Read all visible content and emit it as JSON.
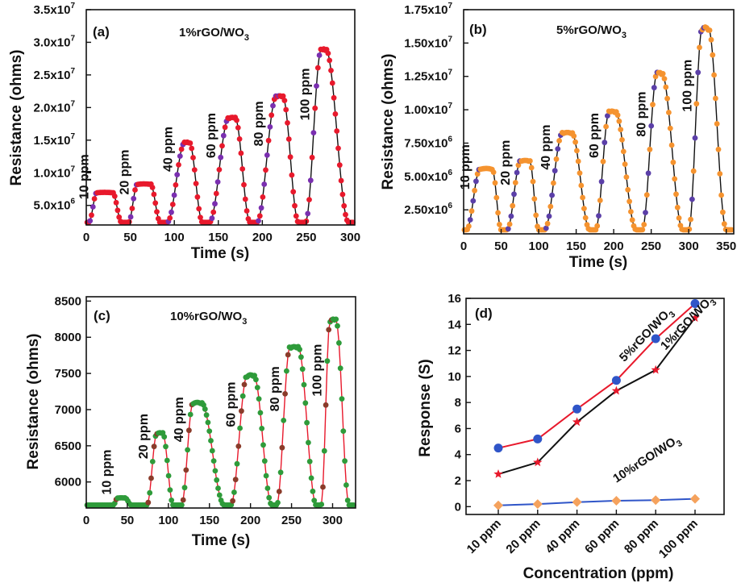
{
  "chart_data": [
    {
      "type": "line",
      "panel": "(a)",
      "material": {
        "base": "1%rGO/WO",
        "sub": "3"
      },
      "xlabel": "Time (s)",
      "ylabel": "Resistance (ohms)",
      "xlim": [
        0,
        305
      ],
      "ylim": [
        2000000,
        35000000
      ],
      "xticks": [
        {
          "value": 0,
          "label": "0"
        },
        {
          "value": 50,
          "label": "50"
        },
        {
          "value": 100,
          "label": "100"
        },
        {
          "value": 150,
          "label": "150"
        },
        {
          "value": 200,
          "label": "200"
        },
        {
          "value": 250,
          "label": "250"
        },
        {
          "value": 300,
          "label": "300"
        }
      ],
      "yticks": [
        {
          "value": 5000000,
          "label": "5.0x10",
          "exp": "6"
        },
        {
          "value": 10000000,
          "label": "1.0x10",
          "exp": "7"
        },
        {
          "value": 15000000,
          "label": "1.5x10",
          "exp": "7"
        },
        {
          "value": 20000000,
          "label": "2.0x10",
          "exp": "7"
        },
        {
          "value": 25000000,
          "label": "2.5x10",
          "exp": "7"
        },
        {
          "value": 30000000,
          "label": "3.0x10",
          "exp": "7"
        },
        {
          "value": 35000000,
          "label": "3.5x10",
          "exp": "7"
        }
      ],
      "colors": {
        "line": "#111111",
        "marker": "#e8192c",
        "marker_alt": "#7a2fb0"
      },
      "baseline": 2400000,
      "pulses": [
        {
          "label": "10 ppm",
          "rise_start": 3,
          "peak_start": 12,
          "peak_end": 30,
          "recover_end": 40,
          "peak": 7000000
        },
        {
          "label": "20 ppm",
          "rise_start": 48,
          "peak_start": 58,
          "peak_end": 73,
          "recover_end": 84,
          "peak": 8300000
        },
        {
          "label": "40 ppm",
          "rise_start": 92,
          "peak_start": 112,
          "peak_end": 117,
          "recover_end": 132,
          "peak": 14700000
        },
        {
          "label": "60 ppm",
          "rise_start": 140,
          "peak_start": 162,
          "peak_end": 169,
          "recover_end": 186,
          "peak": 18500000
        },
        {
          "label": "80 ppm",
          "rise_start": 194,
          "peak_start": 216,
          "peak_end": 223,
          "recover_end": 241,
          "peak": 21800000
        },
        {
          "label": "100 ppm",
          "rise_start": 249,
          "peak_start": 267,
          "peak_end": 272,
          "recover_end": 298,
          "peak": 29000000
        }
      ]
    },
    {
      "type": "line",
      "panel": "(b)",
      "material": {
        "base": "5%rGO/WO",
        "sub": "3"
      },
      "xlabel": "Time (s)",
      "ylabel": "Resistance (ohms)",
      "xlim": [
        0,
        360
      ],
      "ylim": [
        700000,
        17500000
      ],
      "xticks": [
        {
          "value": 0,
          "label": "0"
        },
        {
          "value": 50,
          "label": "50"
        },
        {
          "value": 100,
          "label": "100"
        },
        {
          "value": 150,
          "label": "150"
        },
        {
          "value": 200,
          "label": "200"
        },
        {
          "value": 250,
          "label": "250"
        },
        {
          "value": 300,
          "label": "300"
        },
        {
          "value": 350,
          "label": "350"
        }
      ],
      "yticks": [
        {
          "value": 2500000,
          "label": "2.50x10",
          "exp": "6"
        },
        {
          "value": 5000000,
          "label": "5.00x10",
          "exp": "6"
        },
        {
          "value": 7500000,
          "label": "7.50x10",
          "exp": "6"
        },
        {
          "value": 10000000,
          "label": "1.00x10",
          "exp": "7"
        },
        {
          "value": 12500000,
          "label": "1.25x10",
          "exp": "7"
        },
        {
          "value": 15000000,
          "label": "1.50x10",
          "exp": "7"
        },
        {
          "value": 17500000,
          "label": "1.75x10",
          "exp": "7"
        }
      ],
      "colors": {
        "line": "#111111",
        "marker": "#f5932f",
        "marker_alt": "#5b3fa8"
      },
      "baseline": 1000000,
      "pulses": [
        {
          "label": "10 ppm",
          "rise_start": 4,
          "peak_start": 22,
          "peak_end": 38,
          "recover_end": 50,
          "peak": 5600000
        },
        {
          "label": "20 ppm",
          "rise_start": 58,
          "peak_start": 76,
          "peak_end": 88,
          "recover_end": 100,
          "peak": 6200000
        },
        {
          "label": "40 ppm",
          "rise_start": 108,
          "peak_start": 132,
          "peak_end": 144,
          "recover_end": 168,
          "peak": 8300000
        },
        {
          "label": "60 ppm",
          "rise_start": 176,
          "peak_start": 194,
          "peak_end": 202,
          "recover_end": 230,
          "peak": 9900000
        },
        {
          "label": "80 ppm",
          "rise_start": 238,
          "peak_start": 258,
          "peak_end": 264,
          "recover_end": 292,
          "peak": 12800000
        },
        {
          "label": "100 ppm",
          "rise_start": 300,
          "peak_start": 318,
          "peak_end": 326,
          "recover_end": 350,
          "peak": 16200000
        }
      ]
    },
    {
      "type": "line",
      "panel": "(c)",
      "material": {
        "base": "10%rGO/WO",
        "sub": "3"
      },
      "xlabel": "Time (s)",
      "ylabel": "Resistance (ohms)",
      "xlim": [
        0,
        328
      ],
      "ylim": [
        5640,
        8560
      ],
      "xticks": [
        {
          "value": 0,
          "label": "0"
        },
        {
          "value": 50,
          "label": "50"
        },
        {
          "value": 100,
          "label": "100"
        },
        {
          "value": 150,
          "label": "150"
        },
        {
          "value": 200,
          "label": "200"
        },
        {
          "value": 250,
          "label": "250"
        },
        {
          "value": 300,
          "label": "300"
        }
      ],
      "yticks": [
        {
          "value": 6000,
          "label": "6000"
        },
        {
          "value": 6500,
          "label": "6500"
        },
        {
          "value": 7000,
          "label": "7000"
        },
        {
          "value": 7500,
          "label": "7500"
        },
        {
          "value": 8000,
          "label": "8000"
        },
        {
          "value": 8500,
          "label": "8500"
        }
      ],
      "colors": {
        "line": "#e8192c",
        "marker": "#2e9b3a",
        "marker_alt": "#8a3b2a"
      },
      "baseline": 5680,
      "pulses": [
        {
          "label": "10 ppm",
          "rise_start": 33,
          "peak_start": 38,
          "peak_end": 47,
          "recover_end": 55,
          "peak": 5780
        },
        {
          "label": "20 ppm",
          "rise_start": 74,
          "peak_start": 86,
          "peak_end": 93,
          "recover_end": 106,
          "peak": 6680
        },
        {
          "label": "40 ppm",
          "rise_start": 116,
          "peak_start": 130,
          "peak_end": 140,
          "recover_end": 168,
          "peak": 7100
        },
        {
          "label": "60 ppm",
          "rise_start": 176,
          "peak_start": 196,
          "peak_end": 204,
          "recover_end": 226,
          "peak": 7480
        },
        {
          "label": "80 ppm",
          "rise_start": 232,
          "peak_start": 248,
          "peak_end": 258,
          "recover_end": 280,
          "peak": 7870
        },
        {
          "label": "100 ppm",
          "rise_start": 286,
          "peak_start": 297,
          "peak_end": 304,
          "recover_end": 320,
          "peak": 8250
        }
      ]
    },
    {
      "type": "line",
      "panel": "(d)",
      "xlabel": "Concentration (ppm)",
      "ylabel": "Response (S)",
      "categories": [
        "10 ppm",
        "20 ppm",
        "40 ppm",
        "60 ppm",
        "80 ppm",
        "100 ppm"
      ],
      "ylim": [
        -0.6,
        16
      ],
      "yticks": [
        {
          "value": 0,
          "label": "0"
        },
        {
          "value": 2,
          "label": "2"
        },
        {
          "value": 4,
          "label": "4"
        },
        {
          "value": 6,
          "label": "6"
        },
        {
          "value": 8,
          "label": "8"
        },
        {
          "value": 10,
          "label": "10"
        },
        {
          "value": 12,
          "label": "12"
        },
        {
          "value": 14,
          "label": "14"
        },
        {
          "value": 16,
          "label": "16"
        }
      ],
      "series": [
        {
          "name": "5%rGO/WO3",
          "label_base": "5%rGO/WO",
          "label_sub": "3",
          "values": [
            4.5,
            5.2,
            7.5,
            9.7,
            12.9,
            15.6
          ],
          "line_color": "#e8192c",
          "marker_color": "#2f55c8",
          "marker": "circle"
        },
        {
          "name": "1%rGO/WO3",
          "label_base": "1%rGO/WO",
          "label_sub": "3",
          "values": [
            2.5,
            3.4,
            6.5,
            8.9,
            10.5,
            14.5
          ],
          "line_color": "#111111",
          "marker_color": "#e8192c",
          "marker": "star"
        },
        {
          "name": "10%rGO/WO3",
          "label_base": "10%rGO/WO",
          "label_sub": "3",
          "values": [
            0.1,
            0.2,
            0.35,
            0.45,
            0.5,
            0.6
          ],
          "line_color": "#2f55c8",
          "marker_color": "#f5a25d",
          "marker": "diamond"
        }
      ]
    }
  ]
}
